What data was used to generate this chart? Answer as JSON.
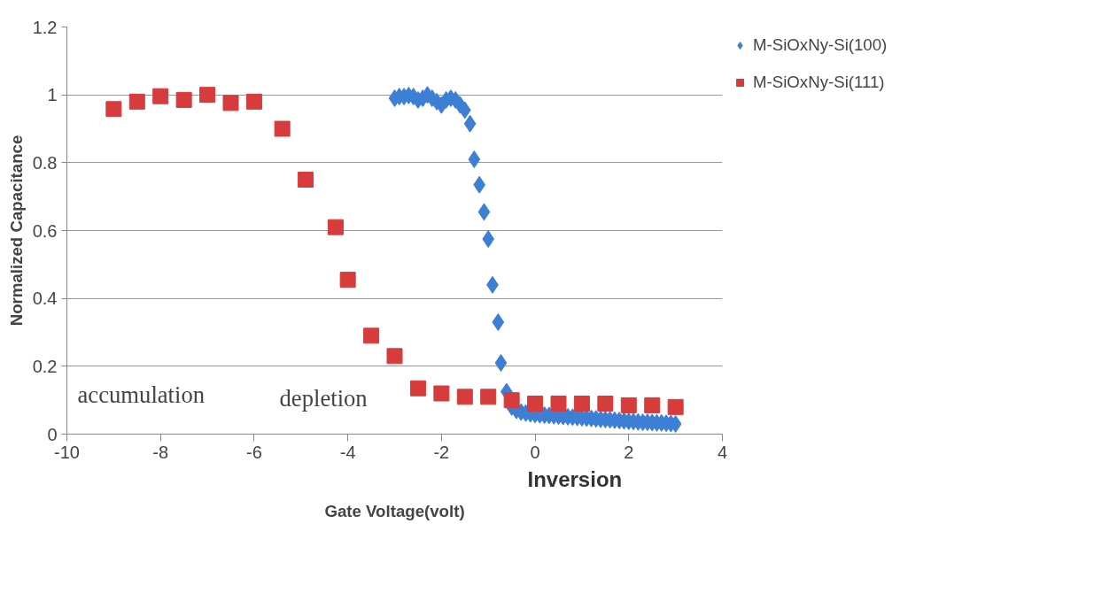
{
  "chart_data": {
    "type": "scatter",
    "xlabel": "Gate Voltage(volt)",
    "ylabel": "Normalized Capacitance",
    "xlim": [
      -10,
      4
    ],
    "xticks": [
      -10,
      -8,
      -6,
      -4,
      -2,
      0,
      2,
      4
    ],
    "ylim": [
      0,
      1.2
    ],
    "yticks": [
      0,
      0.2,
      0.4,
      0.6,
      0.8,
      1,
      1.2
    ],
    "grid": "y",
    "legend": "top right",
    "annotations": [
      "accumulation",
      "depletion",
      "Inversion"
    ],
    "series": [
      {
        "name": "M-SiOxNy-Si(100)",
        "color": "#3c7fd4",
        "marker": "diamond",
        "x": [
          -3.0,
          -2.9,
          -2.8,
          -2.7,
          -2.6,
          -2.5,
          -2.4,
          -2.3,
          -2.2,
          -2.1,
          -2.0,
          -1.9,
          -1.8,
          -1.7,
          -1.6,
          -1.5,
          -1.39,
          -1.3,
          -1.19,
          -1.09,
          -1.0,
          -0.91,
          -0.79,
          -0.73,
          -0.61,
          -0.5,
          -0.4,
          -0.3,
          -0.2,
          -0.1,
          0.0,
          0.1,
          0.2,
          0.3,
          0.4,
          0.5,
          0.6,
          0.7,
          0.8,
          0.9,
          1.0,
          1.1,
          1.2,
          1.3,
          1.4,
          1.5,
          1.6,
          1.7,
          1.8,
          1.9,
          2.0,
          2.1,
          2.2,
          2.3,
          2.4,
          2.5,
          2.6,
          2.7,
          2.8,
          2.9,
          3.0
        ],
        "values": [
          0.99,
          0.995,
          0.995,
          0.998,
          0.995,
          0.985,
          0.99,
          1.0,
          0.99,
          0.98,
          0.97,
          0.985,
          0.99,
          0.985,
          0.97,
          0.955,
          0.915,
          0.81,
          0.735,
          0.655,
          0.575,
          0.44,
          0.33,
          0.21,
          0.125,
          0.08,
          0.07,
          0.065,
          0.062,
          0.06,
          0.058,
          0.057,
          0.056,
          0.055,
          0.054,
          0.053,
          0.052,
          0.051,
          0.05,
          0.049,
          0.048,
          0.047,
          0.046,
          0.045,
          0.044,
          0.043,
          0.042,
          0.041,
          0.04,
          0.039,
          0.038,
          0.037,
          0.036,
          0.035,
          0.035,
          0.034,
          0.033,
          0.033,
          0.032,
          0.031,
          0.03
        ]
      },
      {
        "name": "M-SiOxNy-Si(111)",
        "color": "#d63c3c",
        "marker": "square",
        "x": [
          -9.0,
          -8.5,
          -8.0,
          -7.5,
          -7.0,
          -6.5,
          -6.0,
          -5.4,
          -4.9,
          -4.26,
          -4.0,
          -3.5,
          -3.0,
          -2.5,
          -2.0,
          -1.5,
          -1.0,
          -0.5,
          0.0,
          0.5,
          1.0,
          1.5,
          2.0,
          2.5,
          3.0
        ],
        "values": [
          0.958,
          0.98,
          0.996,
          0.985,
          1.0,
          0.976,
          0.98,
          0.9,
          0.75,
          0.61,
          0.455,
          0.29,
          0.23,
          0.135,
          0.12,
          0.11,
          0.11,
          0.1,
          0.09,
          0.09,
          0.09,
          0.09,
          0.085,
          0.085,
          0.08
        ]
      }
    ]
  }
}
